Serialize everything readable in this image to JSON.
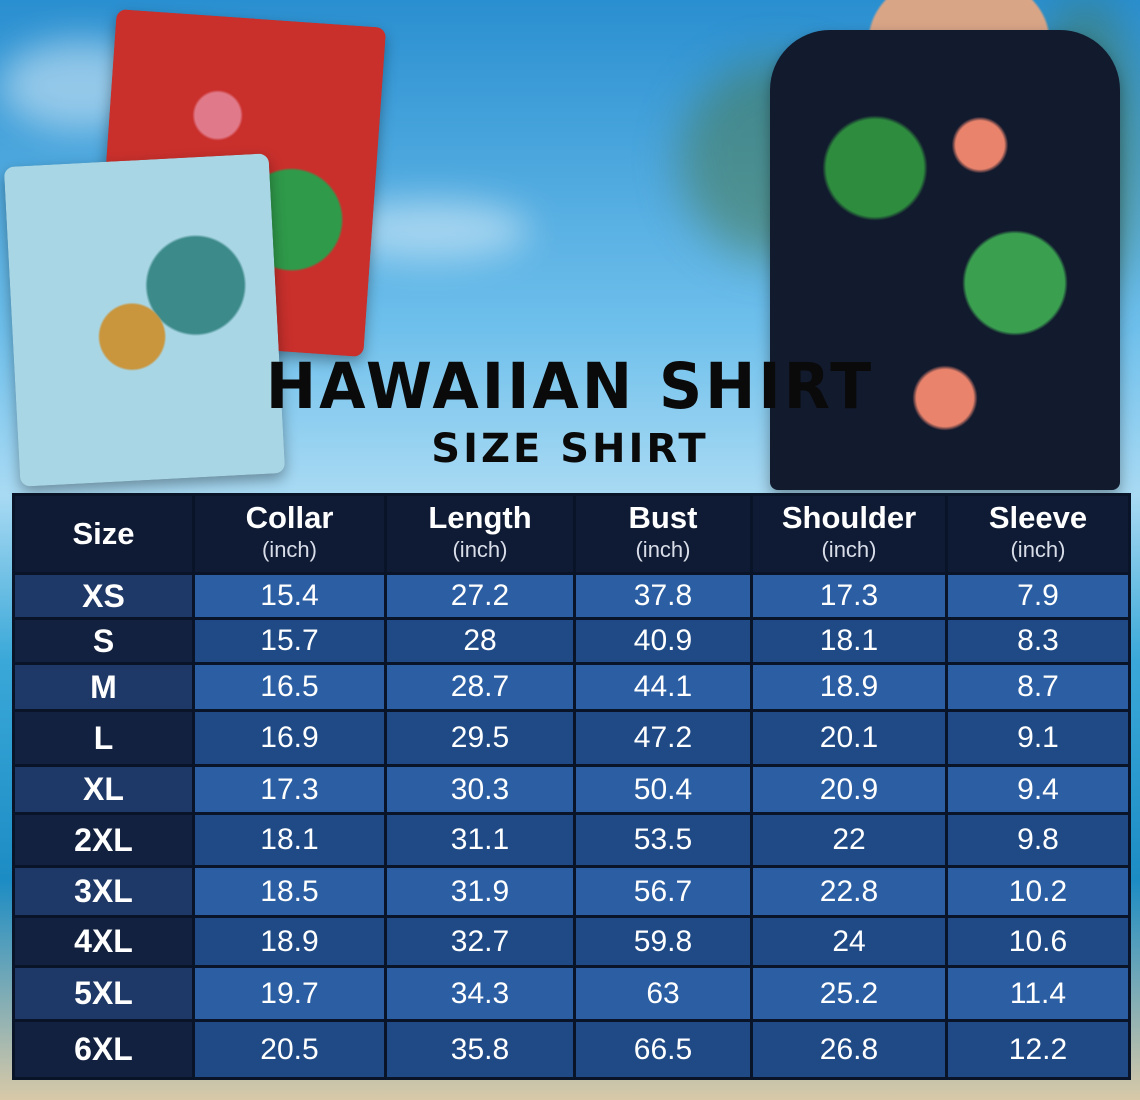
{
  "title": "HAWAIIAN SHIRT",
  "subtitle": "SIZE SHIRT",
  "colors": {
    "header": "#0f1b35",
    "cell": "#2b5ea2",
    "cell_alt": "#1f4a86",
    "size_cell": "#1e3867"
  },
  "table": {
    "headers": [
      {
        "label": "Size",
        "unit": ""
      },
      {
        "label": "Collar",
        "unit": "(inch)"
      },
      {
        "label": "Length",
        "unit": "(inch)"
      },
      {
        "label": "Bust",
        "unit": "(inch)"
      },
      {
        "label": "Shoulder",
        "unit": "(inch)"
      },
      {
        "label": "Sleeve",
        "unit": "(inch)"
      }
    ],
    "rows": [
      [
        "XS",
        "15.4",
        "27.2",
        "37.8",
        "17.3",
        "7.9"
      ],
      [
        "S",
        "15.7",
        "28",
        "40.9",
        "18.1",
        "8.3"
      ],
      [
        "M",
        "16.5",
        "28.7",
        "44.1",
        "18.9",
        "8.7"
      ],
      [
        "L",
        "16.9",
        "29.5",
        "47.2",
        "20.1",
        "9.1"
      ],
      [
        "XL",
        "17.3",
        "30.3",
        "50.4",
        "20.9",
        "9.4"
      ],
      [
        "2XL",
        "18.1",
        "31.1",
        "53.5",
        "22",
        "9.8"
      ],
      [
        "3XL",
        "18.5",
        "31.9",
        "56.7",
        "22.8",
        "10.2"
      ],
      [
        "4XL",
        "18.9",
        "32.7",
        "59.8",
        "24",
        "10.6"
      ],
      [
        "5XL",
        "19.7",
        "34.3",
        "63",
        "25.2",
        "11.4"
      ],
      [
        "6XL",
        "20.5",
        "35.8",
        "66.5",
        "26.8",
        "12.2"
      ]
    ]
  }
}
